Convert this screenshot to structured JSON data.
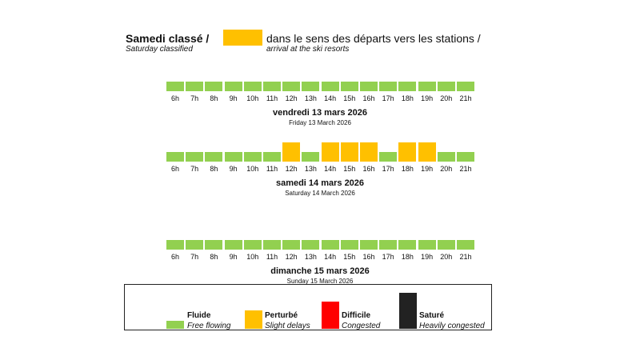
{
  "header": {
    "title": "Samedi classé /",
    "subtitle": "Saturday classified",
    "direction": "dans le sens des départs vers les stations /",
    "direction_en": "arrival at the ski resorts",
    "swatch_color": "#FFC000"
  },
  "chart_data": {
    "type": "table",
    "hours": [
      "6h",
      "7h",
      "8h",
      "9h",
      "10h",
      "11h",
      "12h",
      "13h",
      "14h",
      "15h",
      "16h",
      "17h",
      "18h",
      "19h",
      "20h",
      "21h"
    ],
    "days": [
      {
        "title": "vendredi 13 mars 2026",
        "subtitle": "Friday 13 March 2026",
        "levels": [
          "fluide",
          "fluide",
          "fluide",
          "fluide",
          "fluide",
          "fluide",
          "fluide",
          "fluide",
          "fluide",
          "fluide",
          "fluide",
          "fluide",
          "fluide",
          "fluide",
          "fluide",
          "fluide"
        ]
      },
      {
        "title": "samedi 14 mars 2026",
        "subtitle": "Saturday 14 March 2026",
        "levels": [
          "fluide",
          "fluide",
          "fluide",
          "fluide",
          "fluide",
          "fluide",
          "perturbe",
          "fluide",
          "perturbe",
          "perturbe",
          "perturbe",
          "fluide",
          "perturbe",
          "perturbe",
          "fluide",
          "fluide"
        ]
      },
      {
        "title": "dimanche 15 mars 2026",
        "subtitle": "Sunday 15 March 2026",
        "levels": [
          "fluide",
          "fluide",
          "fluide",
          "fluide",
          "fluide",
          "fluide",
          "fluide",
          "fluide",
          "fluide",
          "fluide",
          "fluide",
          "fluide",
          "fluide",
          "fluide",
          "fluide",
          "fluide"
        ]
      }
    ],
    "legend": [
      {
        "key": "fluide",
        "label": "Fluide",
        "sublabel": "Free flowing",
        "color": "#92D050"
      },
      {
        "key": "perturbe",
        "label": "Perturbé",
        "sublabel": "Slight delays",
        "color": "#FFC000"
      },
      {
        "key": "difficile",
        "label": "Difficile",
        "sublabel": "Congested",
        "color": "#FF0000"
      },
      {
        "key": "sature",
        "label": "Saturé",
        "sublabel": "Heavily congested",
        "color": "#222222"
      }
    ]
  }
}
